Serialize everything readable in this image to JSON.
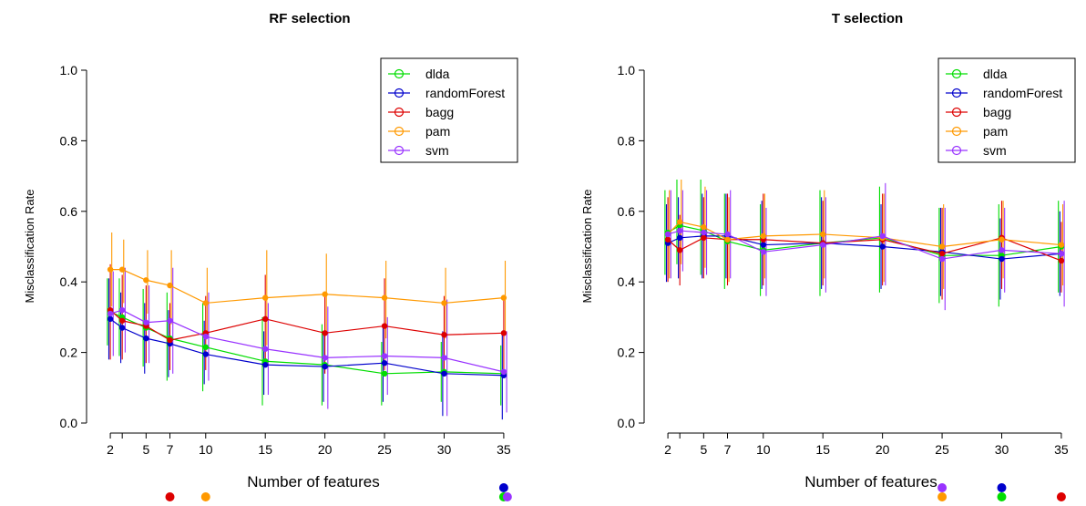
{
  "chart_data": [
    {
      "type": "line",
      "title": "RF selection",
      "xlabel": "Number of features",
      "ylabel": "Misclassification Rate",
      "xticks": [
        2,
        5,
        7,
        10,
        15,
        20,
        25,
        30,
        35
      ],
      "x": [
        2,
        3,
        5,
        7,
        10,
        15,
        20,
        25,
        30,
        35
      ],
      "ylim": [
        0,
        1
      ],
      "yticks": [
        "0.0",
        "0.2",
        "0.4",
        "0.6",
        "0.8",
        "1.0"
      ],
      "legend_position": "top-right",
      "series": [
        {
          "name": "dlda",
          "color": "#00dd00",
          "values": [
            0.315,
            0.3,
            0.27,
            0.24,
            0.215,
            0.175,
            0.165,
            0.14,
            0.145,
            0.14
          ],
          "err_low": [
            0.22,
            0.19,
            0.16,
            0.12,
            0.09,
            0.05,
            0.05,
            0.05,
            0.06,
            0.05
          ],
          "err_high": [
            0.41,
            0.41,
            0.38,
            0.37,
            0.34,
            0.3,
            0.28,
            0.23,
            0.23,
            0.22
          ]
        },
        {
          "name": "randomForest",
          "color": "#0000cc",
          "values": [
            0.295,
            0.27,
            0.24,
            0.225,
            0.195,
            0.165,
            0.16,
            0.17,
            0.14,
            0.135
          ],
          "err_low": [
            0.18,
            0.17,
            0.14,
            0.13,
            0.11,
            0.08,
            0.06,
            0.06,
            0.02,
            0.01
          ],
          "err_high": [
            0.41,
            0.37,
            0.34,
            0.32,
            0.29,
            0.26,
            0.26,
            0.27,
            0.26,
            0.26
          ]
        },
        {
          "name": "bagg",
          "color": "#dd0000",
          "values": [
            0.32,
            0.29,
            0.275,
            0.235,
            0.255,
            0.295,
            0.255,
            0.275,
            0.25,
            0.255
          ],
          "err_low": [
            0.18,
            0.18,
            0.17,
            0.15,
            0.15,
            0.17,
            0.14,
            0.15,
            0.14,
            0.15
          ],
          "err_high": [
            0.45,
            0.42,
            0.39,
            0.34,
            0.36,
            0.42,
            0.37,
            0.41,
            0.36,
            0.36
          ]
        },
        {
          "name": "pam",
          "color": "#ff9900",
          "values": [
            0.435,
            0.435,
            0.405,
            0.39,
            0.34,
            0.355,
            0.365,
            0.355,
            0.34,
            0.355
          ],
          "err_low": [
            0.33,
            0.34,
            0.31,
            0.28,
            0.24,
            0.22,
            0.26,
            0.24,
            0.24,
            0.25
          ],
          "err_high": [
            0.54,
            0.52,
            0.49,
            0.49,
            0.44,
            0.49,
            0.48,
            0.46,
            0.44,
            0.46
          ]
        },
        {
          "name": "svm",
          "color": "#9933ff",
          "values": [
            0.31,
            0.32,
            0.285,
            0.29,
            0.245,
            0.21,
            0.185,
            0.19,
            0.185,
            0.145
          ],
          "err_low": [
            0.19,
            0.2,
            0.17,
            0.14,
            0.12,
            0.08,
            0.04,
            0.08,
            0.02,
            0.03
          ],
          "err_high": [
            0.43,
            0.44,
            0.39,
            0.44,
            0.37,
            0.34,
            0.33,
            0.3,
            0.35,
            0.26
          ]
        }
      ],
      "markers_below": [
        {
          "x": 7,
          "row": 0,
          "color": "#dd0000"
        },
        {
          "x": 10,
          "row": 0,
          "color": "#ff9900"
        },
        {
          "x": 35,
          "row": -1,
          "color": "#0000cc"
        },
        {
          "x": 35,
          "row": 0,
          "color": "#00dd00"
        },
        {
          "x": 35.3,
          "row": 0,
          "color": "#9933ff"
        }
      ]
    },
    {
      "type": "line",
      "title": "T selection",
      "xlabel": "Number of features",
      "ylabel": "Misclassification Rate",
      "xticks": [
        2,
        5,
        7,
        10,
        15,
        20,
        25,
        30,
        35
      ],
      "x": [
        2,
        3,
        5,
        7,
        10,
        15,
        20,
        25,
        30,
        35
      ],
      "ylim": [
        0,
        1
      ],
      "yticks": [
        "0.0",
        "0.2",
        "0.4",
        "0.6",
        "0.8",
        "1.0"
      ],
      "legend_position": "top-right",
      "series": [
        {
          "name": "dlda",
          "color": "#00dd00",
          "values": [
            0.54,
            0.56,
            0.545,
            0.515,
            0.49,
            0.51,
            0.525,
            0.475,
            0.475,
            0.5
          ],
          "err_low": [
            0.42,
            0.45,
            0.42,
            0.38,
            0.36,
            0.36,
            0.37,
            0.34,
            0.33,
            0.37
          ],
          "err_high": [
            0.66,
            0.69,
            0.69,
            0.65,
            0.62,
            0.66,
            0.67,
            0.61,
            0.62,
            0.63
          ]
        },
        {
          "name": "randomForest",
          "color": "#0000cc",
          "values": [
            0.51,
            0.525,
            0.53,
            0.53,
            0.505,
            0.51,
            0.5,
            0.485,
            0.465,
            0.48
          ],
          "err_low": [
            0.4,
            0.41,
            0.41,
            0.41,
            0.38,
            0.38,
            0.38,
            0.36,
            0.35,
            0.36
          ],
          "err_high": [
            0.62,
            0.64,
            0.65,
            0.65,
            0.63,
            0.64,
            0.62,
            0.61,
            0.58,
            0.6
          ]
        },
        {
          "name": "bagg",
          "color": "#dd0000",
          "values": [
            0.52,
            0.49,
            0.525,
            0.52,
            0.52,
            0.51,
            0.52,
            0.48,
            0.525,
            0.46
          ],
          "err_low": [
            0.4,
            0.39,
            0.41,
            0.39,
            0.39,
            0.39,
            0.39,
            0.35,
            0.38,
            0.37
          ],
          "err_high": [
            0.64,
            0.59,
            0.64,
            0.65,
            0.65,
            0.63,
            0.65,
            0.61,
            0.63,
            0.57
          ]
        },
        {
          "name": "pam",
          "color": "#ff9900",
          "values": [
            0.535,
            0.57,
            0.555,
            0.52,
            0.53,
            0.535,
            0.525,
            0.5,
            0.52,
            0.505
          ],
          "err_low": [
            0.41,
            0.45,
            0.44,
            0.4,
            0.41,
            0.41,
            0.4,
            0.38,
            0.41,
            0.39
          ],
          "err_high": [
            0.66,
            0.69,
            0.67,
            0.64,
            0.65,
            0.66,
            0.65,
            0.62,
            0.63,
            0.62
          ]
        },
        {
          "name": "svm",
          "color": "#9933ff",
          "values": [
            0.535,
            0.545,
            0.54,
            0.535,
            0.485,
            0.505,
            0.53,
            0.465,
            0.49,
            0.48
          ],
          "err_low": [
            0.41,
            0.43,
            0.42,
            0.41,
            0.36,
            0.37,
            0.39,
            0.32,
            0.37,
            0.33
          ],
          "err_high": [
            0.66,
            0.66,
            0.66,
            0.66,
            0.61,
            0.64,
            0.68,
            0.61,
            0.61,
            0.63
          ]
        }
      ],
      "markers_below": [
        {
          "x": 25,
          "row": -1,
          "color": "#9933ff"
        },
        {
          "x": 25,
          "row": 0,
          "color": "#ff9900"
        },
        {
          "x": 30,
          "row": -1,
          "color": "#0000cc"
        },
        {
          "x": 30,
          "row": 0,
          "color": "#00dd00"
        },
        {
          "x": 35,
          "row": 0,
          "color": "#dd0000"
        }
      ]
    }
  ]
}
